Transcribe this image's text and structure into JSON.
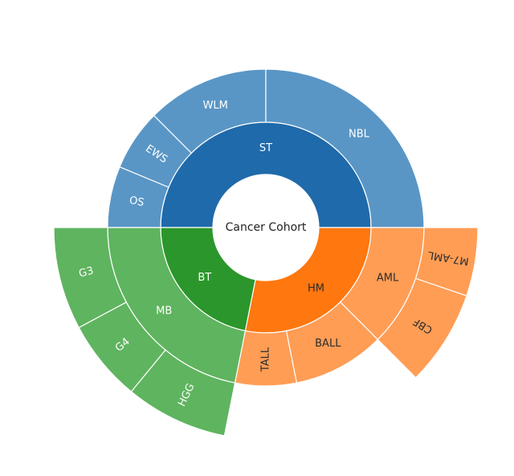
{
  "chart_data": {
    "type": "sunburst",
    "root": "Cancer Cohort",
    "colors": {
      "ST": {
        "ring1": "#1f6aab",
        "ring2": "#5996c6",
        "text1": "#ffffff",
        "text2": "#ffffff"
      },
      "BT": {
        "ring1": "#2b962b",
        "ring2": "#5fb45f",
        "text1": "#ffffff",
        "text2": "#ffffff"
      },
      "HM": {
        "ring1": "#ff770f",
        "ring2": "#ff9d55",
        "text1": "#2d2d2d",
        "text2": "#2d2d2d"
      }
    },
    "groups": [
      {
        "name": "ST",
        "value": 0.5,
        "children": [
          {
            "name": "NBL",
            "value": 0.25
          },
          {
            "name": "WLM",
            "value": 0.125
          },
          {
            "name": "EWS",
            "value": 0.0625
          },
          {
            "name": "OS",
            "value": 0.0625
          }
        ]
      },
      {
        "name": "HM",
        "value": 0.2813,
        "children": [
          {
            "name": "AML",
            "value": 0.125,
            "children": [
              {
                "name": "CBF",
                "value": 0.0729
              },
              {
                "name": "M7-AML",
                "value": 0.0521
              }
            ]
          },
          {
            "name": "BALL",
            "value": 0.0938
          },
          {
            "name": "TALL",
            "value": 0.0625
          }
        ]
      },
      {
        "name": "BT",
        "value": 0.2187,
        "children": [
          {
            "name": "MB",
            "value": 0.2187,
            "children": [
              {
                "name": "HGG",
                "value": 0.0521
              },
              {
                "name": "G4",
                "value": 0.0417
              },
              {
                "name": "G3",
                "value": 0.0521
              }
            ]
          }
        ]
      }
    ]
  }
}
